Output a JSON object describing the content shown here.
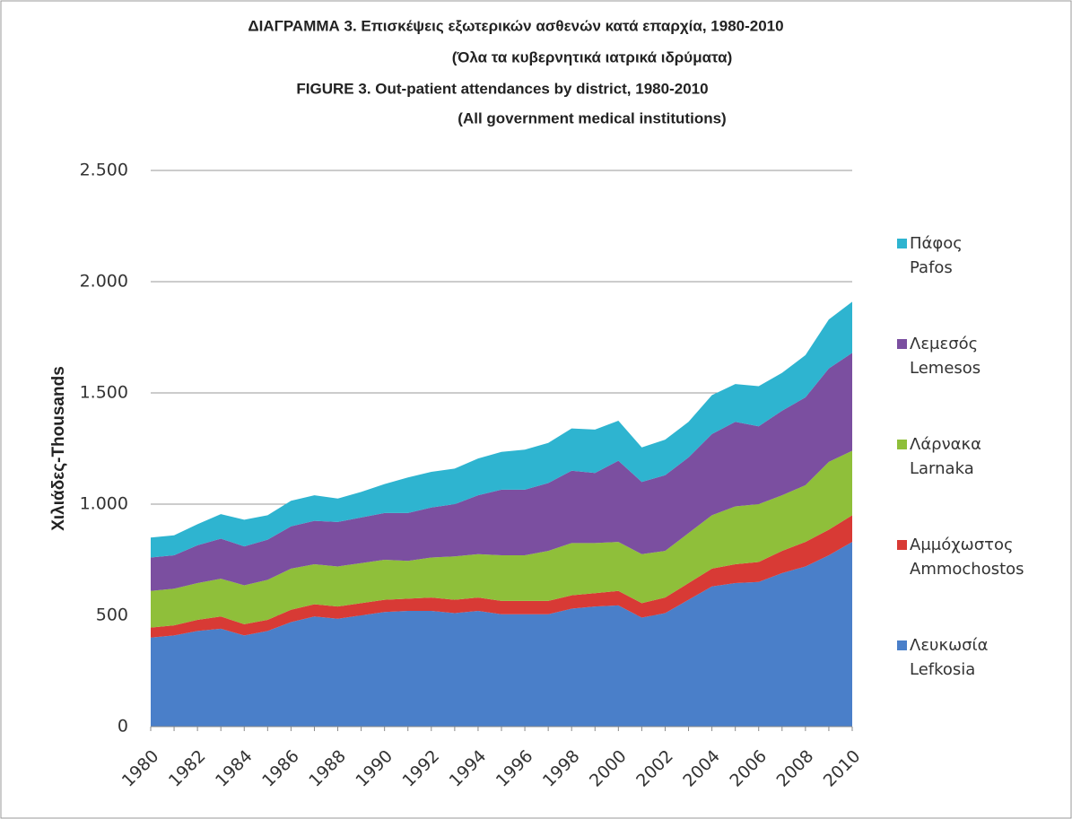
{
  "chart_data": {
    "type": "stacked_area",
    "title": [
      "ΔΙΑΓΡΑΜΜΑ 3.  Επισκέψεις εξωτερικών ασθενών κατά επαρχία, 1980-2010",
      "(Όλα τα κυβερνητικά ιατρικά ιδρύματα)",
      "FIGURE  3.  Out-patient attendances by district, 1980-2010",
      "(All government medical institutions)"
    ],
    "y_label": "Χιλιάδες-Thousands",
    "categories": [
      "1980",
      null,
      "1982",
      null,
      "1984",
      null,
      "1986",
      null,
      "1988",
      null,
      "1990",
      null,
      "1992",
      null,
      "1994",
      null,
      "1996",
      null,
      "1998",
      null,
      "2000",
      null,
      "2002",
      null,
      "2004",
      null,
      "2006",
      null,
      "2008",
      null,
      "2010"
    ],
    "series": [
      {
        "name": "Λευκωσία\nLefkosia",
        "color": "#4a7fc9",
        "values": [
          400,
          410,
          430,
          440,
          410,
          430,
          470,
          495,
          485,
          500,
          515,
          520,
          520,
          510,
          520,
          505,
          505,
          505,
          530,
          540,
          545,
          490,
          510,
          570,
          630,
          645,
          650,
          690,
          720,
          770,
          830
        ]
      },
      {
        "name": "Αμμόχωστος\nAmmochostos",
        "color": "#d83a35",
        "values": [
          45,
          45,
          50,
          55,
          50,
          50,
          55,
          55,
          55,
          55,
          55,
          55,
          60,
          60,
          60,
          60,
          60,
          60,
          60,
          60,
          65,
          65,
          70,
          75,
          80,
          85,
          90,
          100,
          110,
          115,
          120
        ]
      },
      {
        "name": "Λάρνακα\nLarnaka",
        "color": "#8fbf3a",
        "values": [
          165,
          165,
          165,
          170,
          175,
          180,
          185,
          180,
          180,
          180,
          180,
          170,
          180,
          195,
          195,
          205,
          205,
          225,
          235,
          225,
          220,
          220,
          210,
          225,
          240,
          260,
          260,
          250,
          255,
          305,
          290
        ]
      },
      {
        "name": "Λεμεσός\nLemesos",
        "color": "#7b4fa0",
        "values": [
          150,
          150,
          170,
          180,
          175,
          180,
          190,
          195,
          200,
          205,
          210,
          215,
          225,
          235,
          265,
          295,
          295,
          305,
          325,
          315,
          365,
          325,
          340,
          340,
          365,
          380,
          350,
          380,
          395,
          420,
          440
        ]
      },
      {
        "name": "Πάφος\nPafos",
        "color": "#2eb4d0",
        "values": [
          90,
          90,
          95,
          110,
          120,
          110,
          115,
          115,
          105,
          115,
          130,
          160,
          160,
          160,
          165,
          170,
          180,
          180,
          190,
          195,
          180,
          155,
          160,
          160,
          175,
          170,
          180,
          170,
          190,
          220,
          230
        ]
      }
    ],
    "ylim": [
      0,
      2500
    ],
    "yticks": [
      0,
      500,
      {
        "value": 1000,
        "label": "1.000"
      },
      {
        "value": 1500,
        "label": "1.500"
      },
      {
        "value": 2000,
        "label": "2.000"
      },
      {
        "value": 2500,
        "label": "2.500"
      }
    ],
    "grid": true,
    "legend": "right"
  }
}
